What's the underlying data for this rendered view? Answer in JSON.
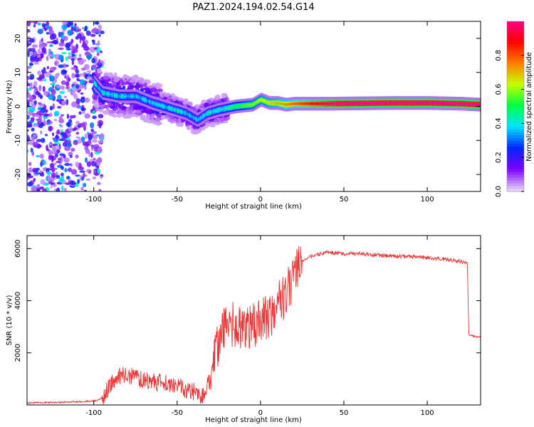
{
  "title": "PAZ1.2024.194.02.54.G14",
  "chart_data": [
    {
      "type": "heatmap",
      "xlabel": "Height of straight line (km)",
      "ylabel": "Frequency (Hz)",
      "xlim": [
        -140,
        132
      ],
      "ylim": [
        -25,
        25
      ],
      "xticks": [
        -100,
        -50,
        0,
        50,
        100
      ],
      "yticks": [
        -20,
        -10,
        0,
        10,
        20
      ],
      "colorbar": {
        "label": "Normalized spectral amplitude",
        "range": [
          0,
          1
        ],
        "ticks": [
          0.0,
          0.2,
          0.4,
          0.6,
          0.8
        ],
        "colors": [
          "#e8d4f6",
          "#7a00ff",
          "#0028ff",
          "#00e5ff",
          "#00ff40",
          "#c8ff00",
          "#ff7a00",
          "#ff0000",
          "#ff0090"
        ]
      },
      "ridge": {
        "x": [
          -135,
          -120,
          -105,
          -95,
          -85,
          -75,
          -65,
          -55,
          -45,
          -38,
          -32,
          -25,
          -15,
          -5,
          0,
          5,
          10,
          15,
          20,
          40,
          60,
          80,
          100,
          120,
          132
        ],
        "frequency": [
          12,
          11,
          10,
          4,
          3,
          3,
          1,
          -0.5,
          -2,
          -4,
          -2,
          -1,
          0,
          0.5,
          2,
          1,
          1,
          0.5,
          0.8,
          0.8,
          0.9,
          1,
          1,
          0.8,
          0.5
        ]
      },
      "grid": false
    },
    {
      "type": "line",
      "xlabel": "Height of straight line (km)",
      "ylabel": "SNR (10 * v/v)",
      "xlim": [
        -140,
        132
      ],
      "ylim": [
        0,
        6500
      ],
      "xticks": [
        -100,
        -50,
        0,
        50,
        100
      ],
      "yticks": [
        2000,
        4000,
        6000
      ],
      "series": [
        {
          "color": "#ee3333",
          "x": [
            -140,
            -120,
            -100,
            -95,
            -90,
            -85,
            -80,
            -75,
            -70,
            -65,
            -60,
            -55,
            -50,
            -45,
            -40,
            -35,
            -30,
            -25,
            -20,
            -15,
            -10,
            -5,
            0,
            5,
            10,
            15,
            20,
            25,
            30,
            40,
            50,
            60,
            70,
            80,
            90,
            100,
            110,
            120,
            124,
            125,
            130,
            132
          ],
          "y": [
            80,
            100,
            150,
            250,
            800,
            1100,
            1200,
            1000,
            950,
            900,
            850,
            800,
            700,
            600,
            500,
            300,
            1000,
            2500,
            3200,
            3000,
            2800,
            3000,
            3200,
            3400,
            3800,
            4200,
            5000,
            5500,
            5700,
            5850,
            5800,
            5800,
            5750,
            5700,
            5700,
            5650,
            5600,
            5500,
            5450,
            2700,
            2600,
            2600
          ]
        }
      ],
      "grid": false
    }
  ]
}
